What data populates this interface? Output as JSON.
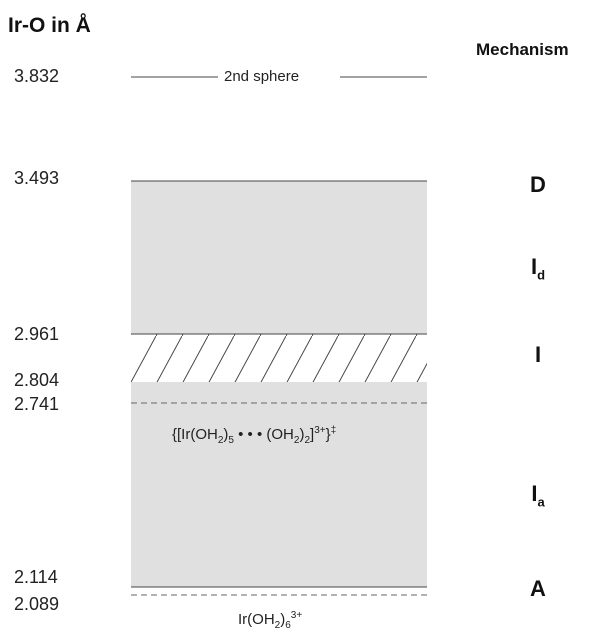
{
  "header": {
    "left": "Ir-O in Å",
    "right": "Mechanism"
  },
  "levels": [
    "3.832",
    "3.493",
    "2.961",
    "2.804",
    "2.741",
    "2.114",
    "2.089"
  ],
  "sphere_label": "2nd sphere",
  "mechanisms": {
    "D": "D",
    "Id_base": "I",
    "Id_sub": "d",
    "I": "I",
    "Ia_base": "I",
    "Ia_sub": "a",
    "A": "A"
  },
  "transition_state": {
    "open": "{[Ir(OH",
    "sub1": "2",
    "mid1": ")",
    "sub2": "5",
    "mid2": " • • • (OH",
    "sub3": "2",
    "mid3": ")",
    "sub4": "2",
    "mid4": "]",
    "sup1": "3+",
    "close": "}",
    "sup2": "‡"
  },
  "ground_state": {
    "base": "Ir(OH",
    "sub": "2",
    "mid": ")",
    "sub2": "6",
    "sup": "3+"
  },
  "colors": {
    "fill": "#e0e0e0",
    "line": "#444444",
    "dash": "#666666"
  }
}
